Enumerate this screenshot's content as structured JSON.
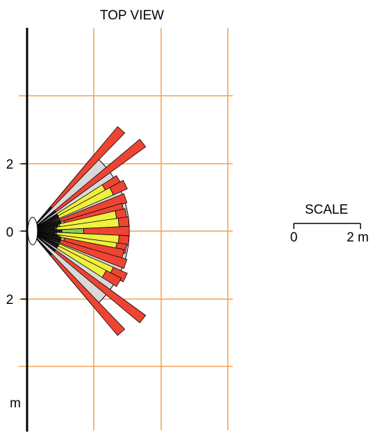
{
  "title": "TOP VIEW",
  "axis": {
    "unit_label": "m",
    "ticks": [
      {
        "label": "2",
        "pos": "upper"
      },
      {
        "label": "0",
        "pos": "center"
      },
      {
        "label": "2",
        "pos": "lower"
      }
    ]
  },
  "scale": {
    "title": "SCALE",
    "start_label": "0",
    "end_label": "2 m"
  },
  "colors": {
    "grid": "#f0a050",
    "axis": "#000000",
    "fan": "#d9d9d9",
    "red": "#ee4433",
    "yellow": "#f0f040",
    "green": "#8cc85a",
    "dark": "#1e1e1e"
  },
  "beams": [
    {
      "angle": -48,
      "segments": [
        [
          "red",
          4.05
        ]
      ]
    },
    {
      "angle": -38,
      "segments": [
        [
          "red",
          4.25
        ]
      ]
    },
    {
      "angle": -30,
      "segments": [
        [
          "yellow",
          2.55
        ],
        [
          "red",
          3.05
        ]
      ]
    },
    {
      "angle": -26,
      "segments": [
        [
          "yellow",
          2.7
        ],
        [
          "red",
          3.15
        ]
      ]
    },
    {
      "angle": -19,
      "segments": [
        [
          "red",
          3.0
        ]
      ]
    },
    {
      "angle": -14,
      "segments": [
        [
          "green",
          1.05
        ],
        [
          "red",
          2.85
        ]
      ]
    },
    {
      "angle": -10.5,
      "segments": [
        [
          "green",
          0.9
        ],
        [
          "yellow",
          2.6
        ],
        [
          "red",
          2.9
        ]
      ]
    },
    {
      "angle": -5.5,
      "segments": [
        [
          "green",
          0.8
        ],
        [
          "yellow",
          2.65
        ],
        [
          "red",
          2.95
        ]
      ]
    },
    {
      "angle": 0,
      "segments": [
        [
          "green",
          1.6
        ],
        [
          "red",
          2.95
        ]
      ]
    },
    {
      "angle": 5.5,
      "segments": [
        [
          "green",
          0.8
        ],
        [
          "yellow",
          2.65
        ],
        [
          "red",
          2.95
        ]
      ]
    },
    {
      "angle": 10.5,
      "segments": [
        [
          "green",
          0.9
        ],
        [
          "yellow",
          2.6
        ],
        [
          "red",
          2.9
        ]
      ]
    },
    {
      "angle": 14,
      "segments": [
        [
          "green",
          1.05
        ],
        [
          "red",
          2.85
        ]
      ]
    },
    {
      "angle": 19,
      "segments": [
        [
          "red",
          3.0
        ]
      ]
    },
    {
      "angle": 26,
      "segments": [
        [
          "yellow",
          2.7
        ],
        [
          "red",
          3.15
        ]
      ]
    },
    {
      "angle": 30,
      "segments": [
        [
          "yellow",
          2.55
        ],
        [
          "red",
          3.05
        ]
      ]
    },
    {
      "angle": 38,
      "segments": [
        [
          "red",
          4.25
        ]
      ]
    },
    {
      "angle": 48,
      "segments": [
        [
          "red",
          4.05
        ]
      ]
    }
  ]
}
